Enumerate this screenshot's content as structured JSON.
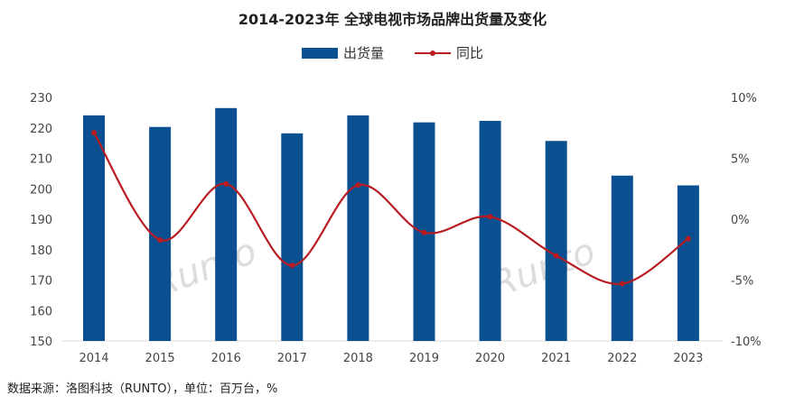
{
  "chart_data": {
    "type": "bar+line",
    "title": "2014-2023年 全球电视市场品牌出货量及变化",
    "categories": [
      "2014",
      "2015",
      "2016",
      "2017",
      "2018",
      "2019",
      "2020",
      "2021",
      "2022",
      "2023"
    ],
    "series": [
      {
        "name": "出货量",
        "type": "bar",
        "axis": "left",
        "color": "#0a4f8f",
        "values": [
          224.1,
          220.3,
          226.5,
          218.2,
          224.1,
          221.8,
          222.3,
          215.7,
          204.3,
          201.1
        ]
      },
      {
        "name": "同比",
        "type": "line",
        "axis": "right",
        "color": "#b81c22",
        "values": [
          7.1,
          -1.7,
          2.9,
          -3.8,
          2.8,
          -1.1,
          0.2,
          -3.0,
          -5.3,
          -1.6
        ]
      }
    ],
    "left_axis": {
      "min": 150,
      "max": 230,
      "ticks": [
        "150",
        "160",
        "170",
        "180",
        "190",
        "200",
        "210",
        "220",
        "230"
      ]
    },
    "right_axis": {
      "min": -10,
      "max": 10,
      "ticks": [
        "-10%",
        "-5%",
        "0%",
        "5%",
        "10%"
      ]
    },
    "legend_position": "top",
    "grid": false,
    "watermark": "RUNTO 洛图科技"
  },
  "source": "数据来源：洛图科技（RUNTO），单位：百万台，%"
}
